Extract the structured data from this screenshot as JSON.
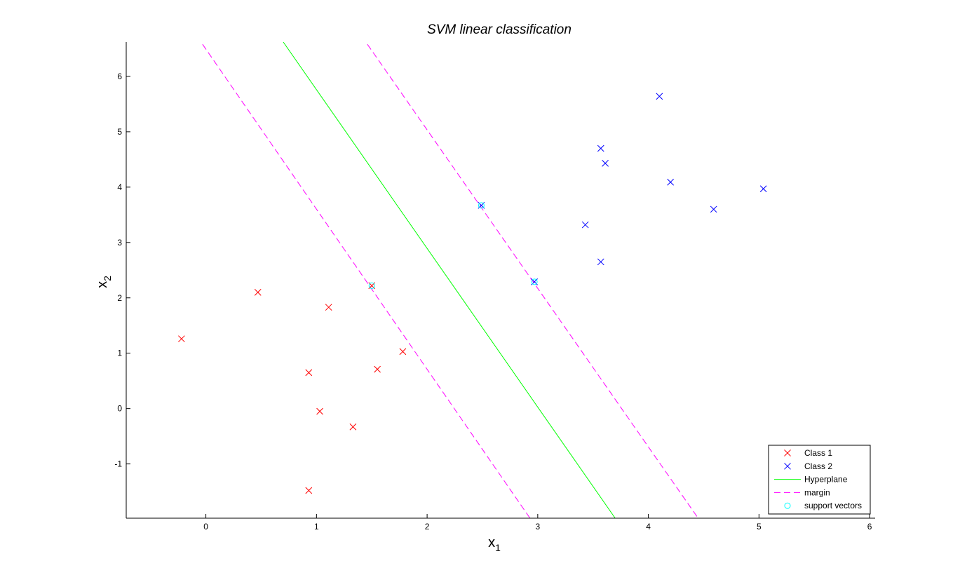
{
  "chart_data": {
    "type": "scatter",
    "title": "SVM linear classification",
    "xlabel": {
      "base": "x",
      "sub": "1"
    },
    "ylabel": {
      "base": "x",
      "sub": "2"
    },
    "xlim": [
      -0.72,
      6.05
    ],
    "ylim": [
      -1.98,
      6.62
    ],
    "x_ticks": [
      0,
      1,
      2,
      3,
      4,
      5,
      6
    ],
    "y_ticks": [
      -1,
      0,
      1,
      2,
      3,
      4,
      5,
      6
    ],
    "grid": false,
    "legend_position": "bottom-right",
    "series": [
      {
        "name": "Class 1",
        "marker": "x",
        "color": "#ff0000",
        "points": [
          [
            -0.22,
            1.26
          ],
          [
            0.47,
            2.1
          ],
          [
            1.11,
            1.83
          ],
          [
            0.93,
            0.65
          ],
          [
            1.55,
            0.71
          ],
          [
            1.78,
            1.03
          ],
          [
            1.03,
            -0.05
          ],
          [
            1.33,
            -0.33
          ],
          [
            0.93,
            -1.48
          ],
          [
            1.5,
            2.22
          ]
        ]
      },
      {
        "name": "Class 2",
        "marker": "x",
        "color": "#0000ff",
        "points": [
          [
            2.49,
            3.67
          ],
          [
            2.97,
            2.29
          ],
          [
            3.43,
            3.32
          ],
          [
            3.57,
            2.65
          ],
          [
            3.57,
            4.7
          ],
          [
            3.61,
            4.43
          ],
          [
            4.1,
            5.64
          ],
          [
            4.2,
            4.09
          ],
          [
            4.59,
            3.6
          ],
          [
            5.04,
            3.97
          ]
        ]
      },
      {
        "name": "Hyperplane",
        "type": "line",
        "style": "solid",
        "color": "#00ff00",
        "points": [
          [
            0.7,
            6.62
          ],
          [
            3.7,
            -1.98
          ]
        ]
      },
      {
        "name": "margin",
        "type": "line",
        "style": "dashed",
        "color": "#ff00ff",
        "points": [
          [
            -0.03,
            6.58
          ],
          [
            2.93,
            -1.98
          ]
        ]
      },
      {
        "type": "line",
        "style": "dashed",
        "color": "#ff00ff",
        "points": [
          [
            1.46,
            6.58
          ],
          [
            4.45,
            -1.98
          ]
        ]
      },
      {
        "name": "support vectors",
        "marker": "o",
        "color": "#00ffff",
        "points": [
          [
            1.5,
            2.22
          ],
          [
            2.49,
            3.67
          ],
          [
            2.97,
            2.29
          ]
        ]
      }
    ],
    "legend": [
      {
        "label": "Class 1",
        "kind": "x",
        "color": "#ff0000"
      },
      {
        "label": "Class 2",
        "kind": "x",
        "color": "#0000ff"
      },
      {
        "label": "Hyperplane",
        "kind": "solid",
        "color": "#00ff00"
      },
      {
        "label": "margin",
        "kind": "dashed",
        "color": "#ff00ff"
      },
      {
        "label": "support vectors",
        "kind": "o",
        "color": "#00ffff"
      }
    ]
  }
}
